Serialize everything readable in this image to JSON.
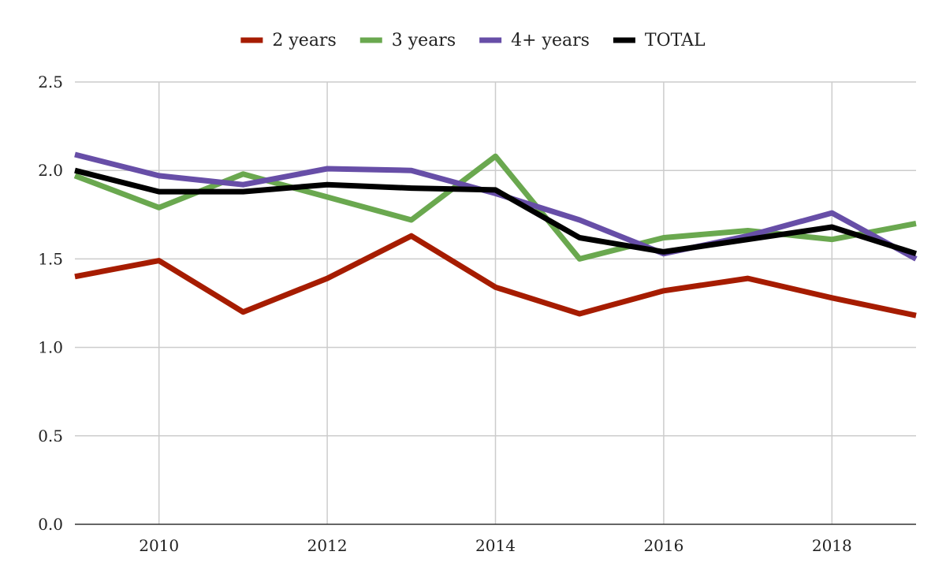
{
  "chart_data": {
    "type": "line",
    "title": "",
    "xlabel": "",
    "ylabel": "",
    "x": [
      2009,
      2010,
      2011,
      2012,
      2013,
      2014,
      2015,
      2016,
      2017,
      2018,
      2019
    ],
    "xlim": [
      2009,
      2019
    ],
    "ylim": [
      0,
      2.5
    ],
    "x_ticks": [
      "2010",
      "2012",
      "2014",
      "2016",
      "2018"
    ],
    "y_ticks": [
      "0.0",
      "0.5",
      "1.0",
      "1.5",
      "2.0",
      "2.5"
    ],
    "grid": true,
    "legend_position": "top",
    "series": [
      {
        "name": "2 years",
        "color": "#a61c00",
        "values": [
          1.4,
          1.49,
          1.2,
          1.39,
          1.63,
          1.34,
          1.19,
          1.32,
          1.39,
          1.28,
          1.18
        ]
      },
      {
        "name": "3 years",
        "color": "#6aa84f",
        "values": [
          1.97,
          1.79,
          1.98,
          1.85,
          1.72,
          2.08,
          1.5,
          1.62,
          1.66,
          1.61,
          1.7
        ]
      },
      {
        "name": "4+ years",
        "color": "#674ea7",
        "values": [
          2.09,
          1.97,
          1.92,
          2.01,
          2.0,
          1.87,
          1.72,
          1.53,
          1.63,
          1.76,
          1.5
        ]
      },
      {
        "name": "TOTAL",
        "color": "#000000",
        "values": [
          2.0,
          1.88,
          1.88,
          1.92,
          1.9,
          1.89,
          1.62,
          1.54,
          1.61,
          1.68,
          1.53
        ]
      }
    ]
  }
}
